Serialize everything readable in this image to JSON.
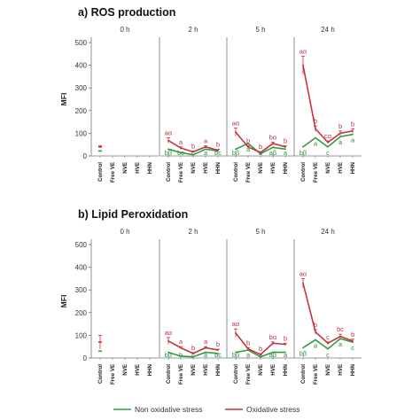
{
  "legend": {
    "entries": [
      {
        "label": "Non oxidative stress",
        "color": "#2e9e3e"
      },
      {
        "label": "Oxidative stress",
        "color": "#c9323f"
      }
    ]
  },
  "chart_data": [
    {
      "type": "line",
      "title": "a) ROS production",
      "ylabel": "MFI",
      "ylim": [
        0,
        500
      ],
      "yticks": [
        0,
        100,
        200,
        300,
        400,
        500
      ],
      "facets": [
        "0 h",
        "2 h",
        "5 h",
        "24 h"
      ],
      "categories": [
        "Control",
        "Free VE",
        "NVE",
        "HVE",
        "HHN"
      ],
      "colors": {
        "non_oxidative": "#2e9e3e",
        "oxidative": "#c9323f"
      },
      "series": {
        "non_oxidative": [
          [
            22,
            null,
            null,
            null,
            null
          ],
          [
            30,
            15,
            5,
            30,
            22
          ],
          [
            30,
            55,
            10,
            38,
            30
          ],
          [
            40,
            80,
            40,
            85,
            95
          ]
        ],
        "oxidative": [
          [
            40,
            null,
            null,
            null,
            null
          ],
          [
            68,
            35,
            18,
            40,
            25
          ],
          [
            105,
            40,
            15,
            55,
            40
          ],
          [
            400,
            120,
            60,
            100,
            110
          ]
        ]
      },
      "errors_oxidative": [
        [
          5,
          null,
          null,
          null,
          null
        ],
        [
          12,
          5,
          4,
          5,
          4
        ],
        [
          18,
          5,
          4,
          6,
          5
        ],
        [
          40,
          12,
          6,
          10,
          10
        ]
      ],
      "labels_oxidative": [
        [
          "",
          "",
          "",
          "",
          ""
        ],
        [
          "aα",
          "a",
          "b",
          "a",
          "b"
        ],
        [
          "aα",
          "b",
          "b",
          "bα",
          "b"
        ],
        [
          "aα",
          "b",
          "cα",
          "b",
          "b"
        ]
      ],
      "labels_non_oxidative": [
        [
          "",
          "",
          "",
          "",
          ""
        ],
        [
          "bβ",
          "bc",
          "c",
          "a",
          "bc"
        ],
        [
          "bβ",
          "a",
          "a",
          "aβ",
          "a"
        ],
        [
          "bβ",
          "a",
          "c",
          "a",
          "a"
        ]
      ]
    },
    {
      "type": "line",
      "title": "b) Lipid Peroxidation",
      "ylabel": "MFI",
      "ylim": [
        0,
        500
      ],
      "yticks": [
        0,
        100,
        200,
        300,
        400,
        500
      ],
      "facets": [
        "0 h",
        "2 h",
        "5 h",
        "24 h"
      ],
      "categories": [
        "Control",
        "Free VE",
        "NVE",
        "HVE",
        "HHN"
      ],
      "colors": {
        "non_oxidative": "#2e9e3e",
        "oxidative": "#c9323f"
      },
      "series": {
        "non_oxidative": [
          [
            30,
            null,
            null,
            null,
            null
          ],
          [
            25,
            8,
            5,
            25,
            20
          ],
          [
            25,
            35,
            5,
            25,
            25
          ],
          [
            45,
            80,
            40,
            85,
            70
          ]
        ],
        "oxidative": [
          [
            70,
            null,
            null,
            null,
            null
          ],
          [
            75,
            45,
            20,
            45,
            35
          ],
          [
            110,
            40,
            15,
            65,
            60
          ],
          [
            330,
            115,
            65,
            95,
            75
          ]
        ]
      },
      "errors_oxidative": [
        [
          30,
          null,
          null,
          null,
          null
        ],
        [
          15,
          5,
          4,
          5,
          4
        ],
        [
          18,
          5,
          4,
          6,
          5
        ],
        [
          20,
          10,
          6,
          10,
          8
        ]
      ],
      "labels_oxidative": [
        [
          "",
          "",
          "",
          "",
          ""
        ],
        [
          "aα",
          "a",
          "b",
          "a",
          "b"
        ],
        [
          "aα",
          "b",
          "b",
          "bα",
          "b"
        ],
        [
          "aα",
          "b",
          "c",
          "bc",
          "b"
        ]
      ],
      "labels_non_oxidative": [
        [
          "",
          "",
          "",
          "",
          ""
        ],
        [
          "bβ",
          "b",
          "c",
          "a",
          "bc"
        ],
        [
          "bβ",
          "a",
          "a",
          "aβ",
          "a"
        ],
        [
          "bβ",
          "a",
          "c",
          "a",
          "c"
        ]
      ]
    }
  ]
}
